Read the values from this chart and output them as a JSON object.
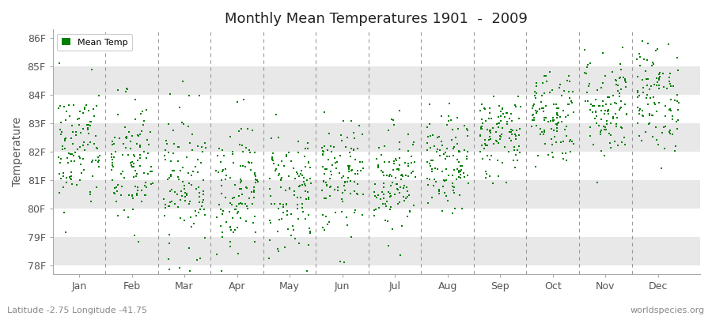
{
  "title": "Monthly Mean Temperatures 1901  -  2009",
  "ylabel": "Temperature",
  "xlabel_months": [
    "Jan",
    "Feb",
    "Mar",
    "Apr",
    "May",
    "Jun",
    "Jul",
    "Aug",
    "Sep",
    "Oct",
    "Nov",
    "Dec"
  ],
  "ytick_labels": [
    "78F",
    "79F",
    "80F",
    "81F",
    "82F",
    "83F",
    "84F",
    "85F",
    "86F"
  ],
  "ytick_values": [
    78,
    79,
    80,
    81,
    82,
    83,
    84,
    85,
    86
  ],
  "ylim": [
    77.7,
    86.3
  ],
  "marker_color": "#008000",
  "marker": "s",
  "marker_size": 3,
  "legend_label": "Mean Temp",
  "footnote_left": "Latitude -2.75 Longitude -41.75",
  "footnote_right": "worldspecies.org",
  "background_color": "#ffffff",
  "plot_bg_color": "#ffffff",
  "stripe_color": "#e8e8e8",
  "n_years": 109,
  "seed": 42,
  "monthly_means": [
    82.1,
    81.5,
    81.0,
    80.8,
    80.6,
    81.0,
    81.1,
    81.5,
    82.6,
    83.3,
    83.6,
    83.9
  ],
  "monthly_stds": [
    1.1,
    1.25,
    1.25,
    1.15,
    1.15,
    1.0,
    0.95,
    0.85,
    0.75,
    0.85,
    0.95,
    0.95
  ]
}
